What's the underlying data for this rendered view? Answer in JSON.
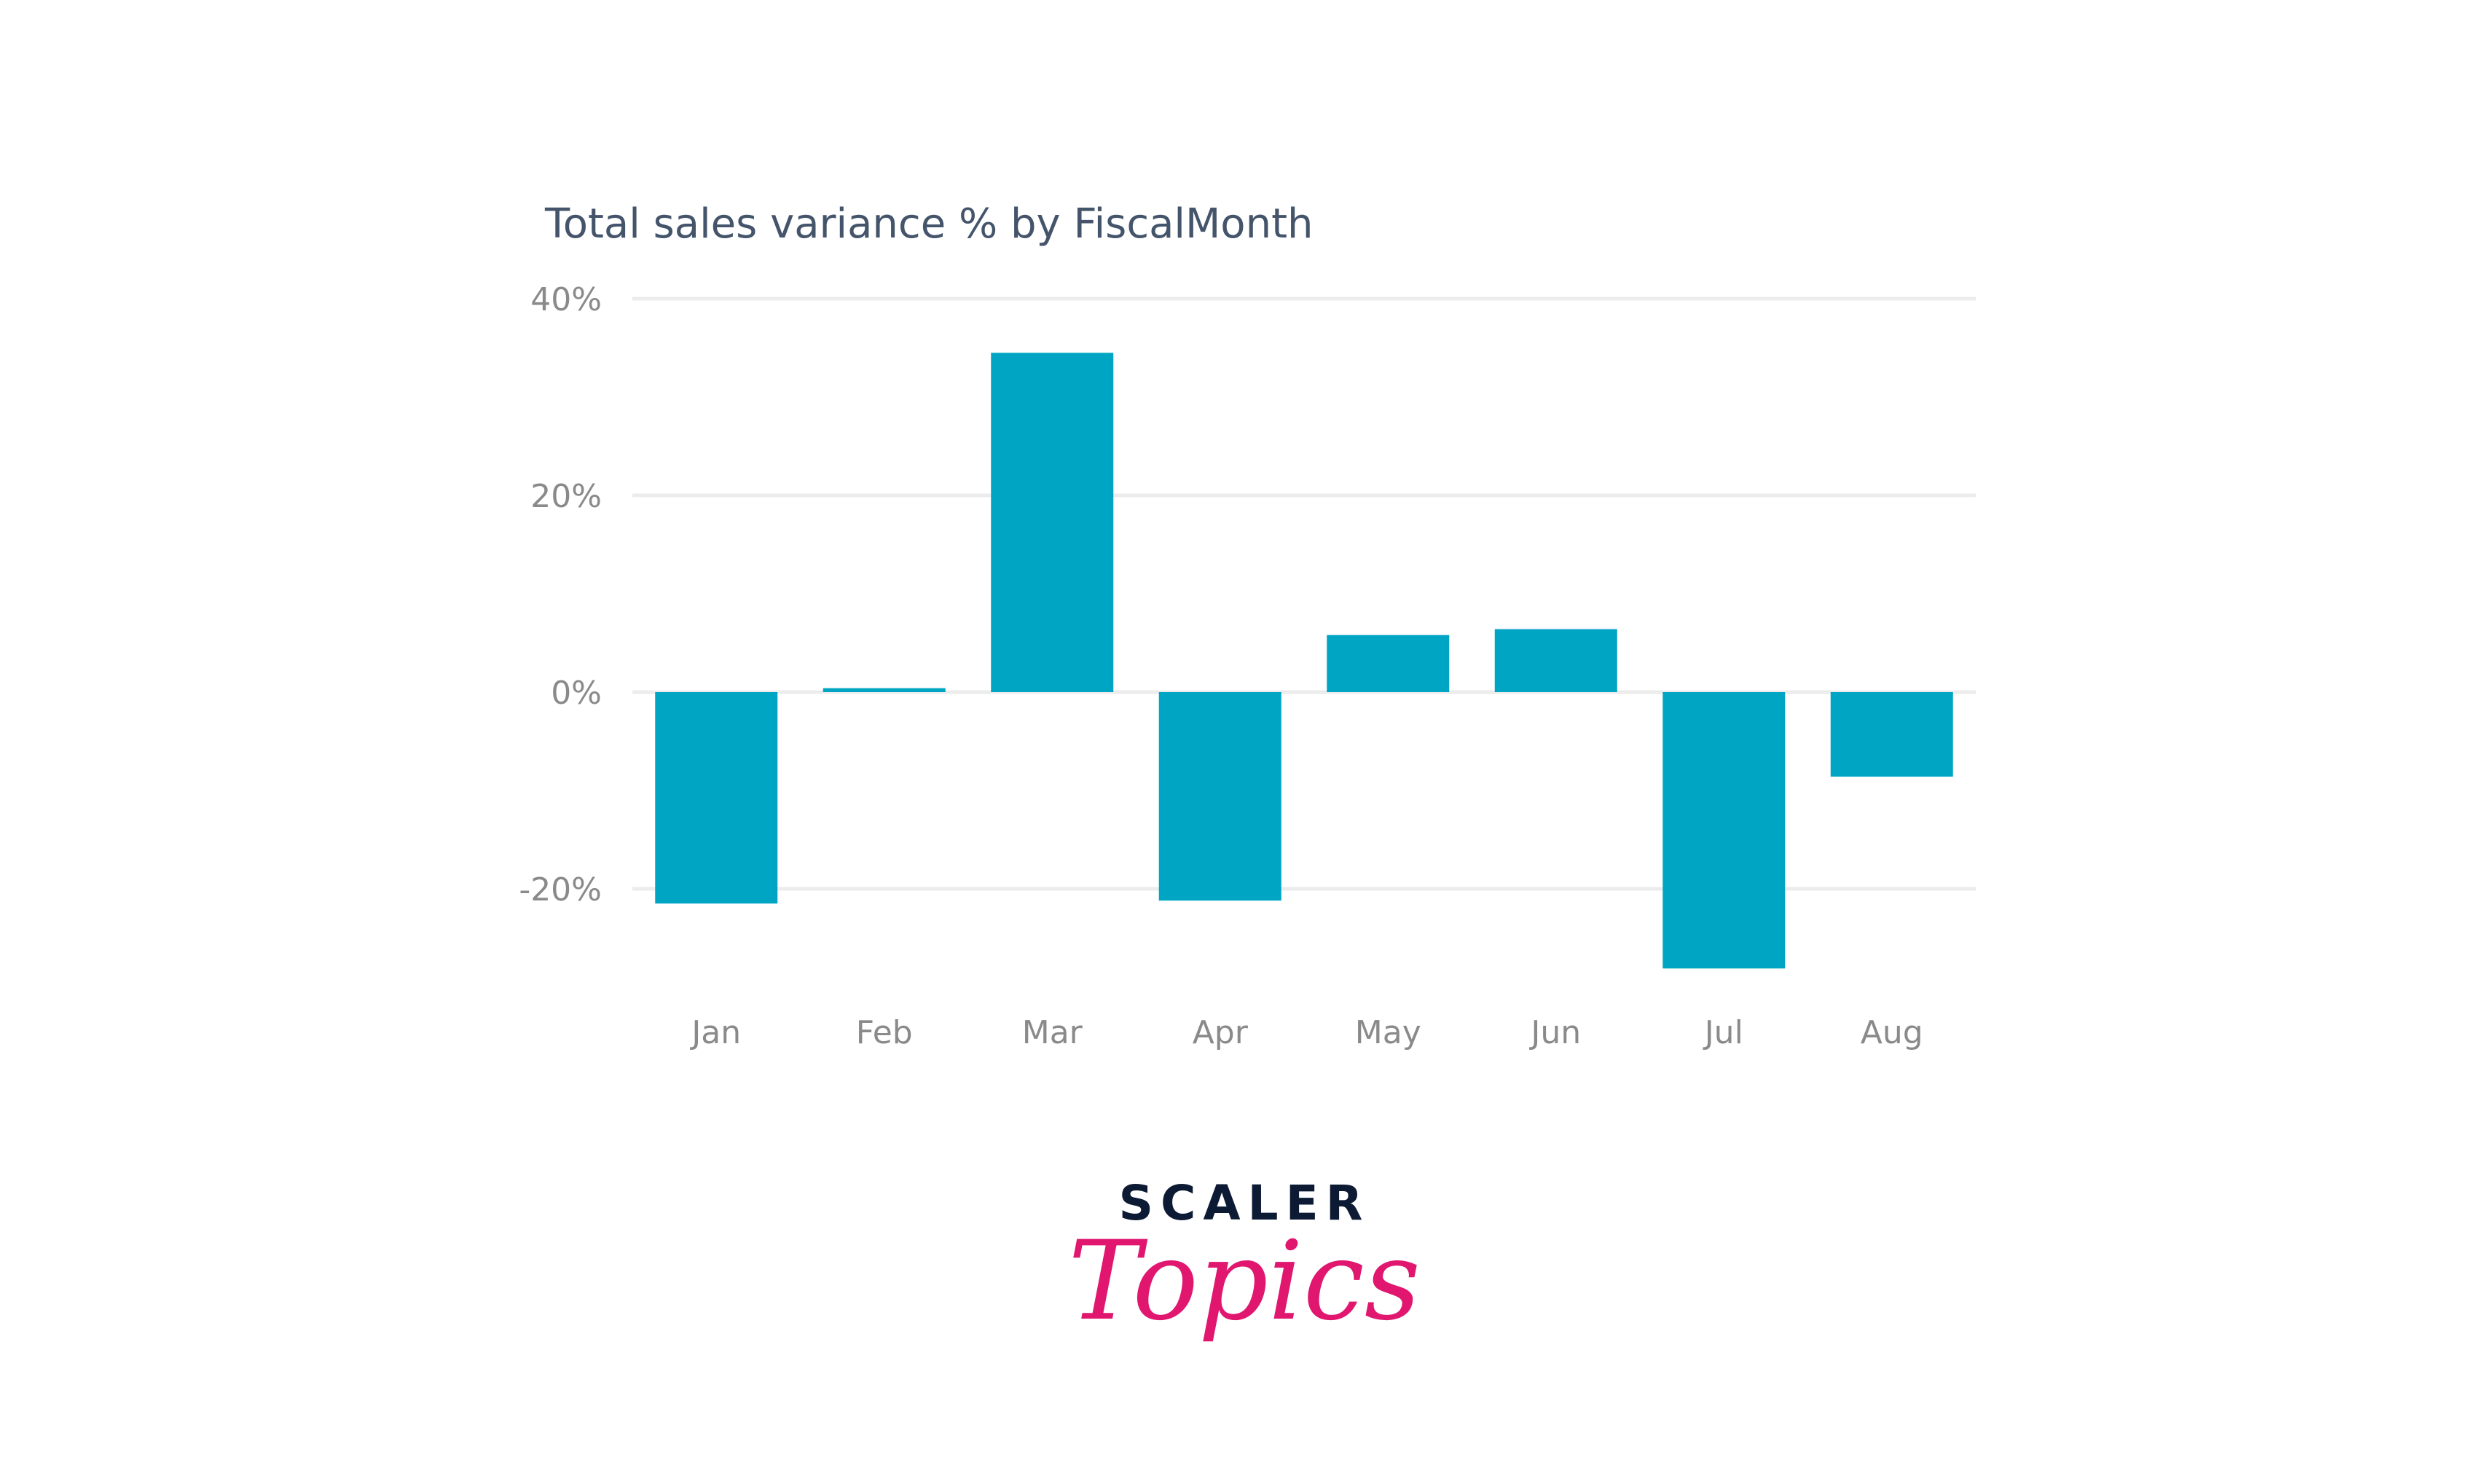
{
  "chart_data": {
    "type": "bar",
    "title": "Total sales variance % by FiscalMonth",
    "categories": [
      "Jan",
      "Feb",
      "Mar",
      "Apr",
      "May",
      "Jun",
      "Jul",
      "Aug"
    ],
    "values": [
      -21.5,
      0.4,
      34.5,
      -21.2,
      5.8,
      6.4,
      -28.1,
      -8.6
    ],
    "yticks": [
      40,
      20,
      0,
      -20
    ],
    "ytick_labels": [
      "40%",
      "20%",
      "0%",
      "-20%"
    ],
    "ylim": [
      -30,
      40
    ],
    "xlabel": "",
    "ylabel": "",
    "grid": true,
    "bar_color": "#00a5c4"
  },
  "logo": {
    "line1": "SCALER",
    "line2": "Topics",
    "colors": {
      "scaler": "#0c1a33",
      "topics": "#e0166f"
    }
  }
}
